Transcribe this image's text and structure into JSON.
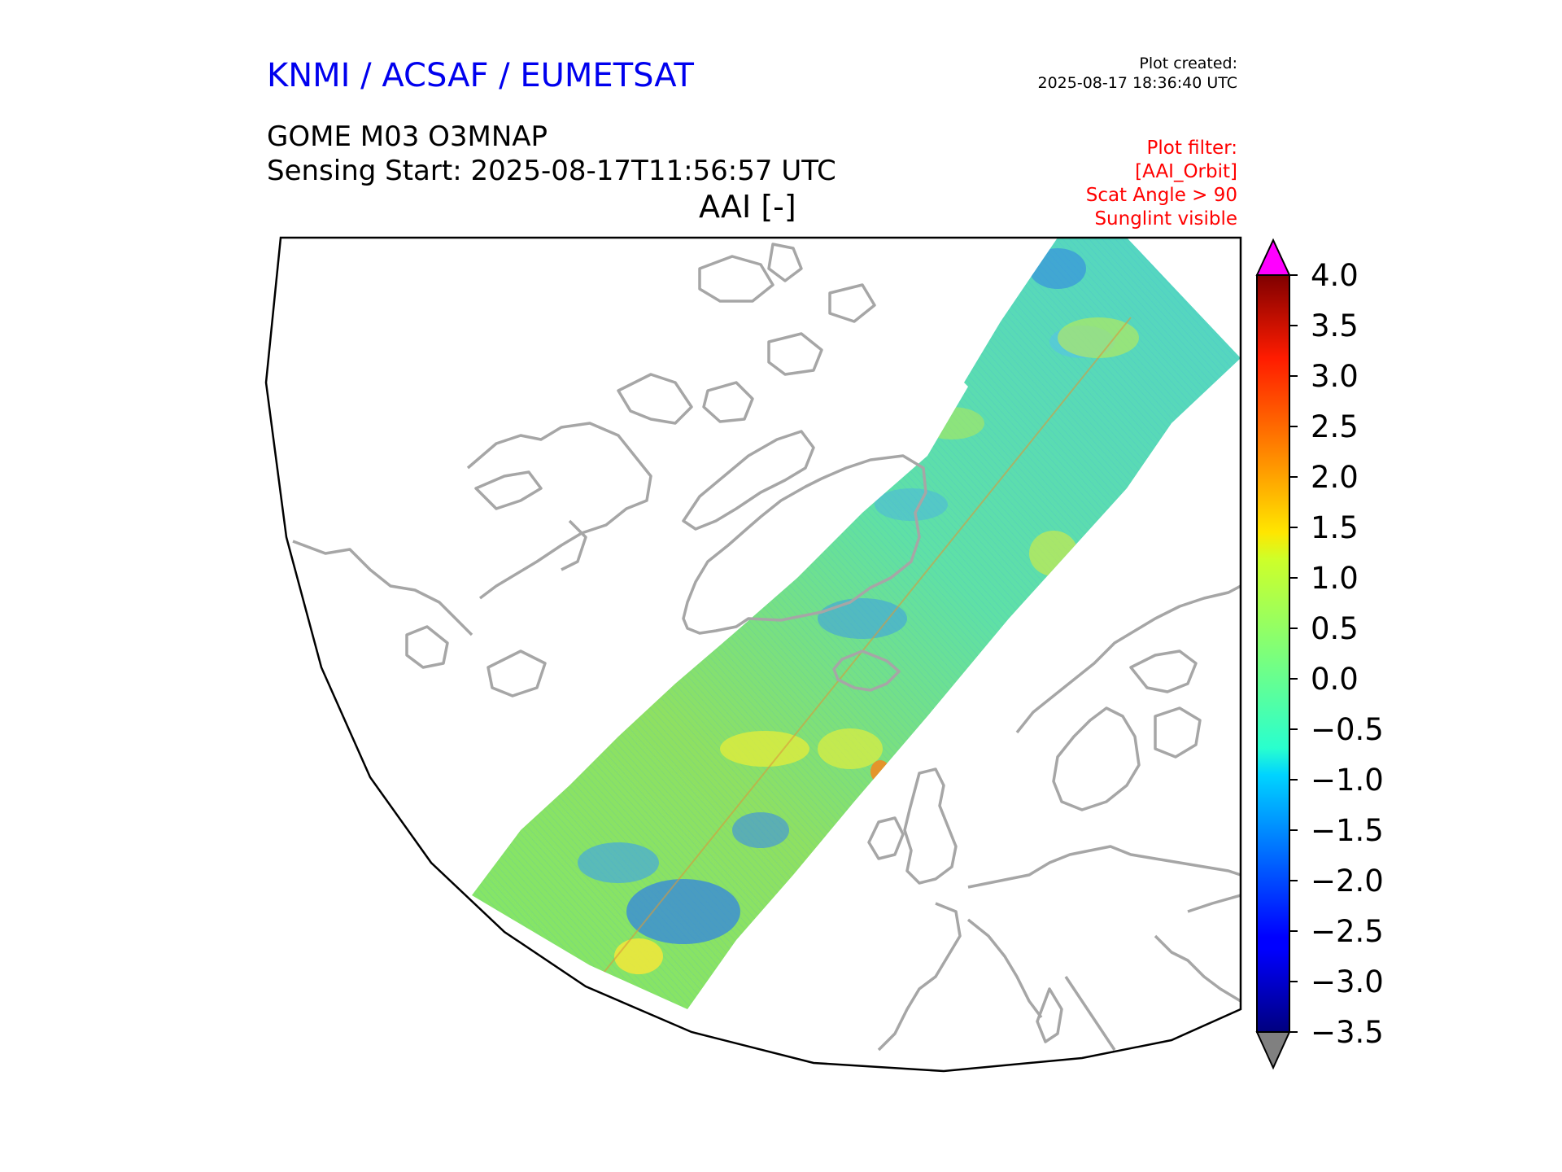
{
  "header": {
    "organization": "KNMI / ACSAF / EUMETSAT",
    "plot_created_label": "Plot created:",
    "plot_created_time": "2025-08-17 18:36:40 UTC",
    "product": "GOME M03 O3MNAP",
    "sensing_start": "Sensing Start: 2025-08-17T11:56:57 UTC",
    "variable": "AAI [-]"
  },
  "filter": {
    "lines": [
      "Plot filter:",
      "[AAI_Orbit]",
      "Scat Angle > 90",
      "Sunglint visible"
    ]
  },
  "map": {
    "projection": "north polar stereographic sector",
    "region": "North Atlantic / Greenland / Europe",
    "swath": "GOME-2 orbit swath from Mediterranean to Arctic",
    "coastline_color": "#a6a6a6"
  },
  "colorbar": {
    "colormap": "jet",
    "min": -3.5,
    "max": 4.0,
    "over_color": "#ff00ff",
    "under_color": "#808080",
    "ticks": [
      "4.0",
      "3.5",
      "3.0",
      "2.5",
      "2.0",
      "1.5",
      "1.0",
      "0.5",
      "0.0",
      "−0.5",
      "−1.0",
      "−1.5",
      "−2.0",
      "−2.5",
      "−3.0",
      "−3.5"
    ],
    "tick_values": [
      4.0,
      3.5,
      3.0,
      2.5,
      2.0,
      1.5,
      1.0,
      0.5,
      0.0,
      -0.5,
      -1.0,
      -1.5,
      -2.0,
      -2.5,
      -3.0,
      -3.5
    ]
  }
}
